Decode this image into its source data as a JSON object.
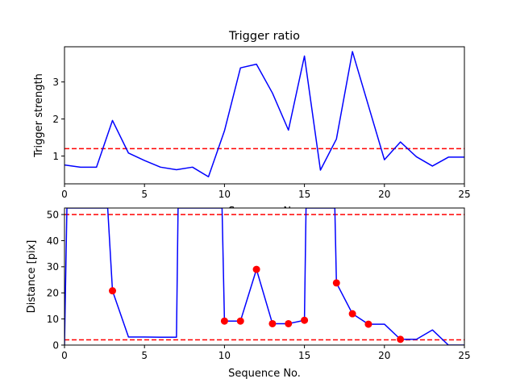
{
  "chart_data": [
    {
      "type": "line",
      "title": "Trigger ratio",
      "xlabel": "Sequence No.",
      "ylabel": "Trigger strength",
      "xlim": [
        0,
        25
      ],
      "ylim": [
        0.25,
        3.95
      ],
      "xticks": [
        0,
        5,
        10,
        15,
        20,
        25
      ],
      "yticks": [
        1,
        2,
        3
      ],
      "grid": false,
      "colors": {
        "line": "#0000ff",
        "threshold": "#ff0000",
        "axes": "#000000"
      },
      "series": [
        {
          "x": [
            0,
            1,
            2,
            3,
            4,
            5,
            6,
            7,
            8,
            9,
            10,
            11,
            12,
            13,
            14,
            15,
            16,
            17,
            18,
            19,
            20,
            21,
            22,
            23,
            24,
            25
          ],
          "values": [
            0.76,
            0.7,
            0.7,
            1.96,
            1.08,
            0.88,
            0.7,
            0.63,
            0.7,
            0.44,
            1.68,
            3.38,
            3.48,
            2.7,
            1.7,
            3.7,
            0.62,
            1.46,
            3.82,
            2.36,
            0.9,
            1.38,
            0.98,
            0.73,
            0.97,
            0.97
          ]
        }
      ],
      "hlines": [
        1.2
      ]
    },
    {
      "type": "line",
      "title": "",
      "xlabel": "Sequence No.",
      "ylabel": "Distance [pix]",
      "xlim": [
        0,
        25
      ],
      "ylim": [
        0,
        52.5
      ],
      "xticks": [
        0,
        5,
        10,
        15,
        20,
        25
      ],
      "yticks": [
        0,
        10,
        20,
        30,
        40,
        50
      ],
      "grid": false,
      "colors": {
        "line": "#0000ff",
        "markers": "#ff0000",
        "threshold": "#ff0000",
        "axes": "#000000"
      },
      "series": [
        {
          "x": [
            0,
            0.15,
            2.7,
            3,
            4,
            5,
            6,
            7,
            7.1,
            9.85,
            10,
            11,
            12,
            13,
            14,
            15,
            15.1,
            16.9,
            17,
            18,
            19,
            20,
            21,
            22,
            23,
            24,
            25
          ],
          "values": [
            0,
            52.5,
            52.5,
            20.8,
            3.1,
            3.1,
            3.0,
            3.0,
            52.5,
            52.5,
            9.2,
            9.2,
            29.0,
            8.2,
            8.2,
            9.5,
            52.5,
            52.5,
            23.8,
            12.0,
            8.0,
            8.0,
            2.2,
            2.2,
            5.8,
            0,
            0
          ]
        }
      ],
      "markers": {
        "x": [
          3,
          10,
          11,
          12,
          13,
          14,
          15,
          17,
          18,
          19,
          21
        ],
        "values": [
          20.8,
          9.2,
          9.2,
          29.0,
          8.2,
          8.2,
          9.5,
          23.8,
          12.0,
          8.0,
          2.2
        ]
      },
      "hlines": [
        50,
        2
      ]
    }
  ]
}
